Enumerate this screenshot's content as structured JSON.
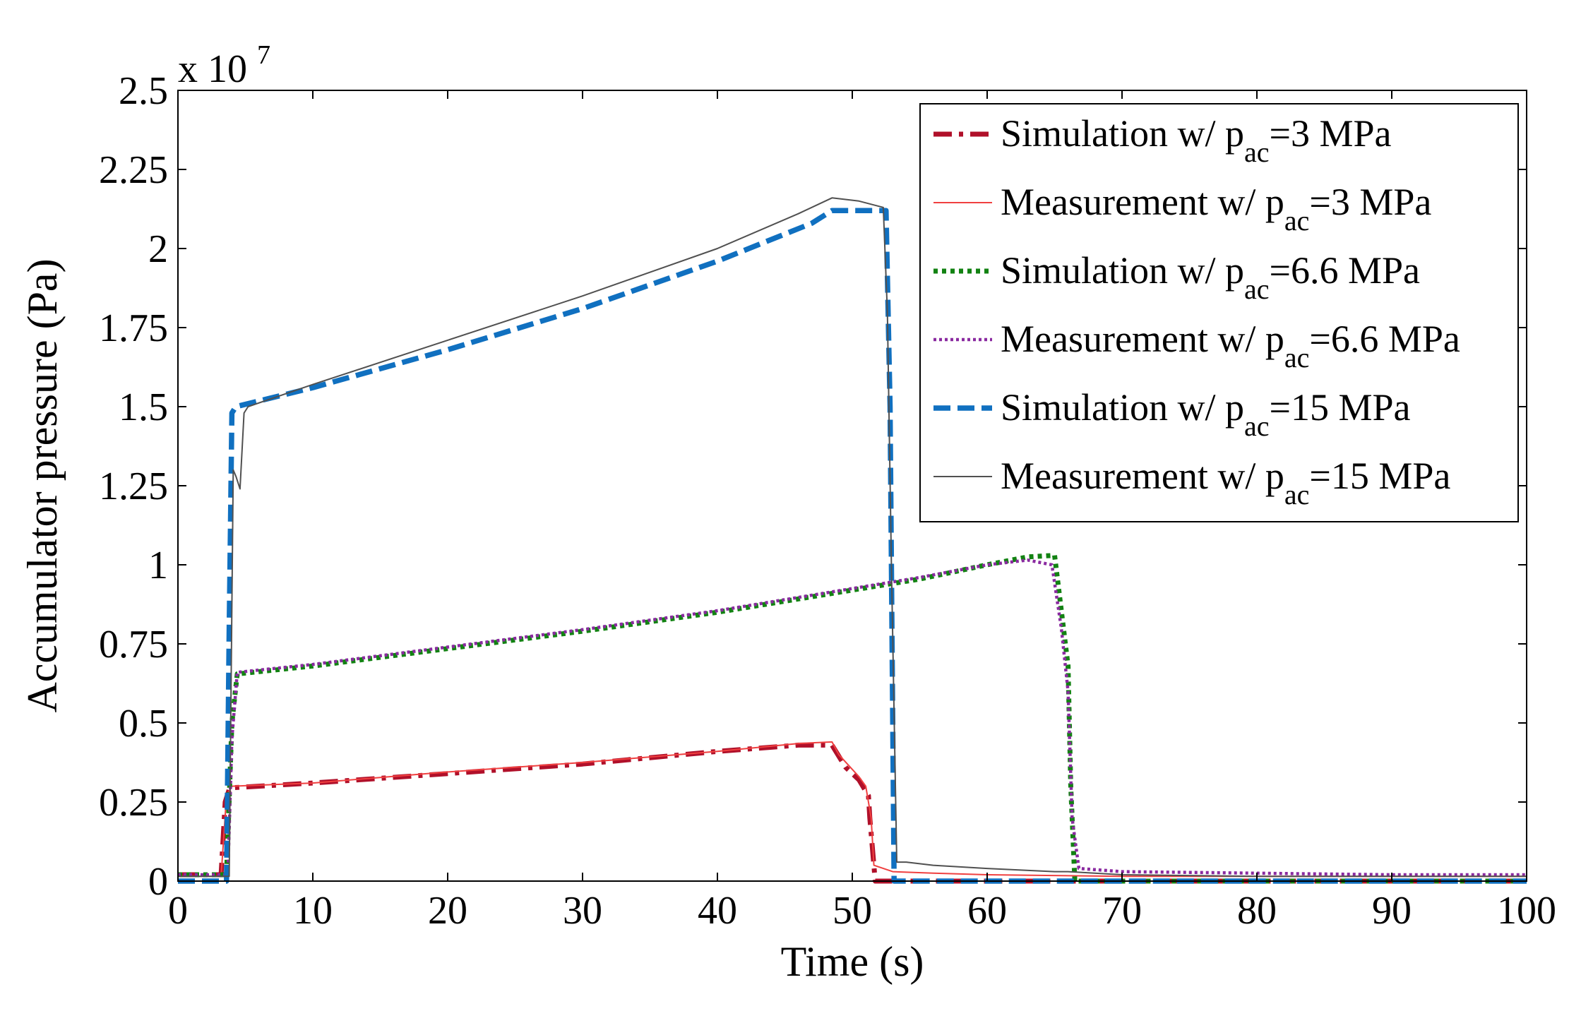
{
  "chart_data": {
    "type": "line",
    "title": "",
    "xlabel": "Time (s)",
    "ylabel": "Accumulator pressure (Pa)",
    "y_exponent_label": {
      "prefix": "x 10",
      "power": "7"
    },
    "xlim": [
      0,
      100
    ],
    "ylim": [
      0,
      2.5
    ],
    "x_ticks": [
      0,
      10,
      20,
      30,
      40,
      50,
      60,
      70,
      80,
      90,
      100
    ],
    "x_tick_labels": [
      "0",
      "10",
      "20",
      "30",
      "40",
      "50",
      "60",
      "70",
      "80",
      "90",
      "100"
    ],
    "y_ticks": [
      0,
      0.25,
      0.5,
      0.75,
      1,
      1.25,
      1.5,
      1.75,
      2,
      2.25,
      2.5
    ],
    "y_tick_labels": [
      "0",
      "0.25",
      "0.5",
      "0.75",
      "1",
      "1.25",
      "1.5",
      "1.75",
      "2",
      "2.25",
      "2.5"
    ],
    "grid": false,
    "legend_position": "top-right",
    "series": [
      {
        "name": "Simulation w/ p_ac=3 MPa",
        "legend": {
          "pre": "Simulation w/ p",
          "sub": "ac",
          "post": "=3 MPa"
        },
        "color": "#b0102a",
        "style": "dashdot",
        "x": [
          0,
          3.2,
          3.5,
          3.8,
          4.0,
          10,
          20,
          30,
          40,
          46,
          48.5,
          49.5,
          50.5,
          51.2,
          51.3,
          51.7,
          52.0,
          53,
          60,
          70,
          80,
          90,
          100
        ],
        "y": [
          0.02,
          0.02,
          0.25,
          0.29,
          0.295,
          0.31,
          0.34,
          0.37,
          0.41,
          0.43,
          0.43,
          0.36,
          0.32,
          0.27,
          0.2,
          0.0,
          0.0,
          0.0,
          0.0,
          0.0,
          0.0,
          0.0,
          0.0
        ]
      },
      {
        "name": "Measurement w/ p_ac=3 MPa",
        "legend": {
          "pre": "Measurement w/ p",
          "sub": "ac",
          "post": "=3 MPa"
        },
        "color": "#f04040",
        "style": "solid-thin",
        "x": [
          0,
          3.2,
          3.6,
          4.0,
          10,
          20,
          30,
          40,
          46,
          48.5,
          49.0,
          50.5,
          51.0,
          51.4,
          51.6,
          53,
          56,
          60,
          70,
          80,
          90,
          100
        ],
        "y": [
          0.015,
          0.015,
          0.27,
          0.3,
          0.31,
          0.345,
          0.375,
          0.41,
          0.435,
          0.44,
          0.4,
          0.33,
          0.3,
          0.2,
          0.05,
          0.03,
          0.025,
          0.02,
          0.015,
          0.015,
          0.015,
          0.015
        ]
      },
      {
        "name": "Simulation w/ p_ac=6.6 MPa",
        "legend": {
          "pre": "Simulation w/ p",
          "sub": "ac",
          "post": "=6.6 MPa"
        },
        "color": "#128212",
        "style": "dotted",
        "x": [
          0,
          3.6,
          4.0,
          4.4,
          10,
          20,
          30,
          40,
          50,
          55,
          60,
          63,
          65.0,
          66.0,
          66.2,
          66.5,
          70,
          80,
          90,
          100
        ],
        "y": [
          0.02,
          0.02,
          0.5,
          0.655,
          0.68,
          0.735,
          0.79,
          0.85,
          0.92,
          0.955,
          1.0,
          1.025,
          1.03,
          0.68,
          0.3,
          0.0,
          0.0,
          0.0,
          0.0,
          0.0
        ]
      },
      {
        "name": "Measurement w/ p_ac=6.6 MPa",
        "legend": {
          "pre": "Measurement w/ p",
          "sub": "ac",
          "post": "=6.6 MPa"
        },
        "color": "#8a2aa0",
        "style": "dotted-thin",
        "x": [
          0,
          3.7,
          4.0,
          4.4,
          10,
          20,
          30,
          40,
          50,
          55,
          60,
          63,
          64.8,
          65.5,
          66.0,
          66.3,
          66.8,
          70,
          80,
          90,
          100
        ],
        "y": [
          0.02,
          0.02,
          0.45,
          0.66,
          0.685,
          0.74,
          0.795,
          0.855,
          0.925,
          0.96,
          1.0,
          1.015,
          1.0,
          0.8,
          0.6,
          0.2,
          0.04,
          0.03,
          0.025,
          0.02,
          0.02
        ]
      },
      {
        "name": "Simulation w/ p_ac=15 MPa",
        "legend": {
          "pre": "Simulation w/ p",
          "sub": "ac",
          "post": "=15 MPa"
        },
        "color": "#1070c0",
        "style": "dashed",
        "x": [
          0,
          3.6,
          3.8,
          4.0,
          4.3,
          10,
          20,
          30,
          40,
          47,
          48.5,
          50,
          52.5,
          52.8,
          53.0,
          53.1,
          60,
          70,
          80,
          90,
          100
        ],
        "y": [
          0.0,
          0.0,
          0.8,
          1.48,
          1.5,
          1.56,
          1.68,
          1.81,
          1.96,
          2.08,
          2.12,
          2.12,
          2.12,
          1.5,
          0.5,
          0.0,
          0.0,
          0.0,
          0.0,
          0.0,
          0.0
        ]
      },
      {
        "name": "Measurement w/ p_ac=15 MPa",
        "legend": {
          "pre": "Measurement w/ p",
          "sub": "ac",
          "post": "=15 MPa"
        },
        "color": "#505050",
        "style": "solid-thin",
        "x": [
          0,
          3.8,
          4.1,
          4.3,
          4.6,
          4.9,
          5.2,
          10,
          20,
          30,
          40,
          46,
          48.5,
          50.5,
          52.3,
          52.6,
          52.9,
          53.3,
          54,
          56,
          60,
          65,
          66,
          70,
          80,
          90,
          100
        ],
        "y": [
          0.015,
          0.015,
          1.3,
          1.28,
          1.24,
          1.48,
          1.5,
          1.57,
          1.71,
          1.85,
          2.0,
          2.11,
          2.16,
          2.15,
          2.13,
          1.8,
          1.0,
          0.06,
          0.06,
          0.05,
          0.04,
          0.03,
          0.03,
          0.02,
          0.015,
          0.015,
          0.015
        ]
      }
    ]
  }
}
